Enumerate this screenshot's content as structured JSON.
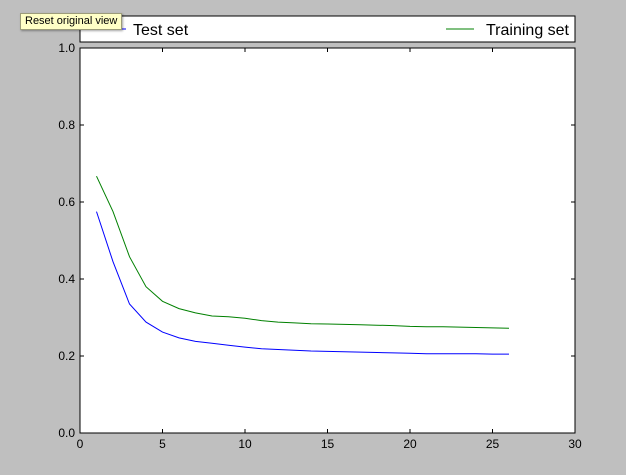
{
  "tooltip": {
    "text": "Reset original view"
  },
  "colors": {
    "background": "#bfbfbf",
    "plot_area": "#ffffff",
    "test_series": "#0000ff",
    "training_series": "#008000"
  },
  "chart_data": {
    "type": "line",
    "xlim": [
      0,
      30
    ],
    "ylim": [
      0.0,
      1.0
    ],
    "x_ticks": [
      "0",
      "5",
      "10",
      "15",
      "20",
      "25",
      "30"
    ],
    "x_tick_values": [
      0,
      5,
      10,
      15,
      20,
      25,
      30
    ],
    "y_ticks": [
      "0.0",
      "0.2",
      "0.4",
      "0.6",
      "0.8",
      "1.0"
    ],
    "y_tick_values": [
      0.0,
      0.2,
      0.4,
      0.6,
      0.8,
      1.0
    ],
    "grid": false,
    "legend_placement": "top",
    "series": [
      {
        "name": "Test set",
        "color": "#0000ff",
        "x": [
          1,
          2,
          3,
          4,
          5,
          6,
          7,
          8,
          9,
          10,
          11,
          12,
          13,
          14,
          15,
          16,
          17,
          18,
          19,
          20,
          21,
          22,
          23,
          24,
          25,
          26
        ],
        "y": [
          0.575,
          0.445,
          0.335,
          0.288,
          0.262,
          0.247,
          0.238,
          0.233,
          0.228,
          0.223,
          0.219,
          0.217,
          0.215,
          0.213,
          0.212,
          0.211,
          0.21,
          0.209,
          0.208,
          0.207,
          0.206,
          0.206,
          0.206,
          0.206,
          0.205,
          0.205
        ]
      },
      {
        "name": "Training set",
        "color": "#008000",
        "x": [
          1,
          2,
          3,
          4,
          5,
          6,
          7,
          8,
          9,
          10,
          11,
          12,
          13,
          14,
          15,
          16,
          17,
          18,
          19,
          20,
          21,
          22,
          23,
          24,
          25,
          26
        ],
        "y": [
          0.667,
          0.575,
          0.458,
          0.38,
          0.342,
          0.323,
          0.312,
          0.304,
          0.302,
          0.298,
          0.292,
          0.288,
          0.286,
          0.284,
          0.283,
          0.282,
          0.281,
          0.28,
          0.279,
          0.277,
          0.276,
          0.276,
          0.275,
          0.274,
          0.273,
          0.272
        ]
      }
    ]
  }
}
